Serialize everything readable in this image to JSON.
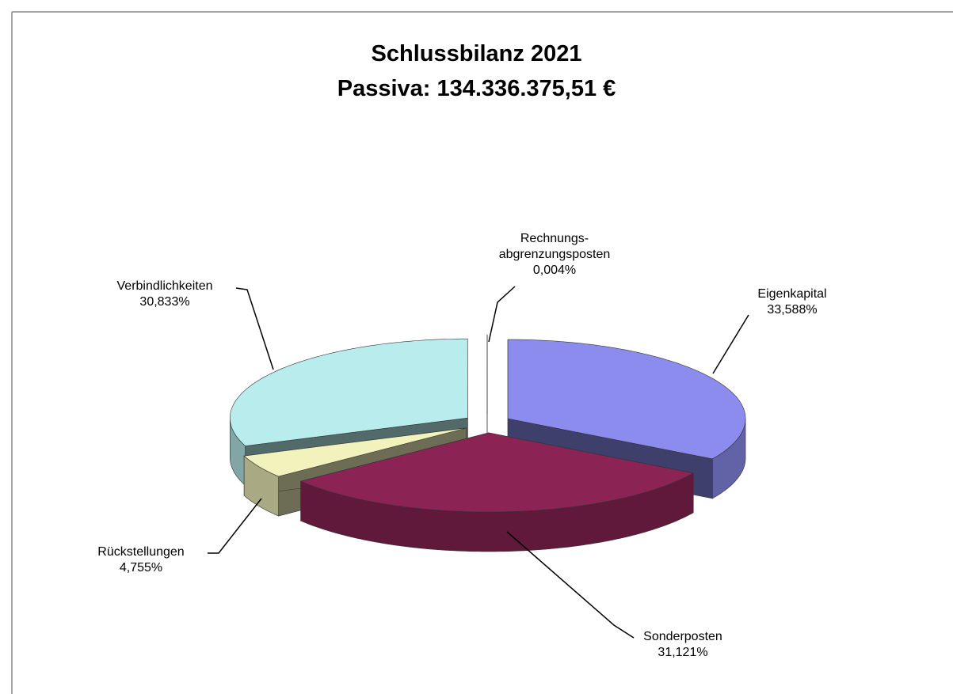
{
  "chart_data": {
    "type": "pie3d",
    "title": "Schlussbilanz 2021",
    "subtitle": "Passiva: 134.336.375,51 €",
    "categories": [
      "Eigenkapital",
      "Sonderposten",
      "Rückstellungen",
      "Verbindlichkeiten",
      "Rechnungs-\nabgrenzungsposten"
    ],
    "values": [
      33.588,
      31.121,
      4.755,
      30.833,
      0.004
    ],
    "value_labels": [
      "33,588%",
      "31,121%",
      "4,755%",
      "30,833%",
      "0,004%"
    ],
    "colors": [
      "#8c8cef",
      "#8b2454",
      "#f2f2bd",
      "#b9ecec",
      "#ffffff"
    ]
  }
}
